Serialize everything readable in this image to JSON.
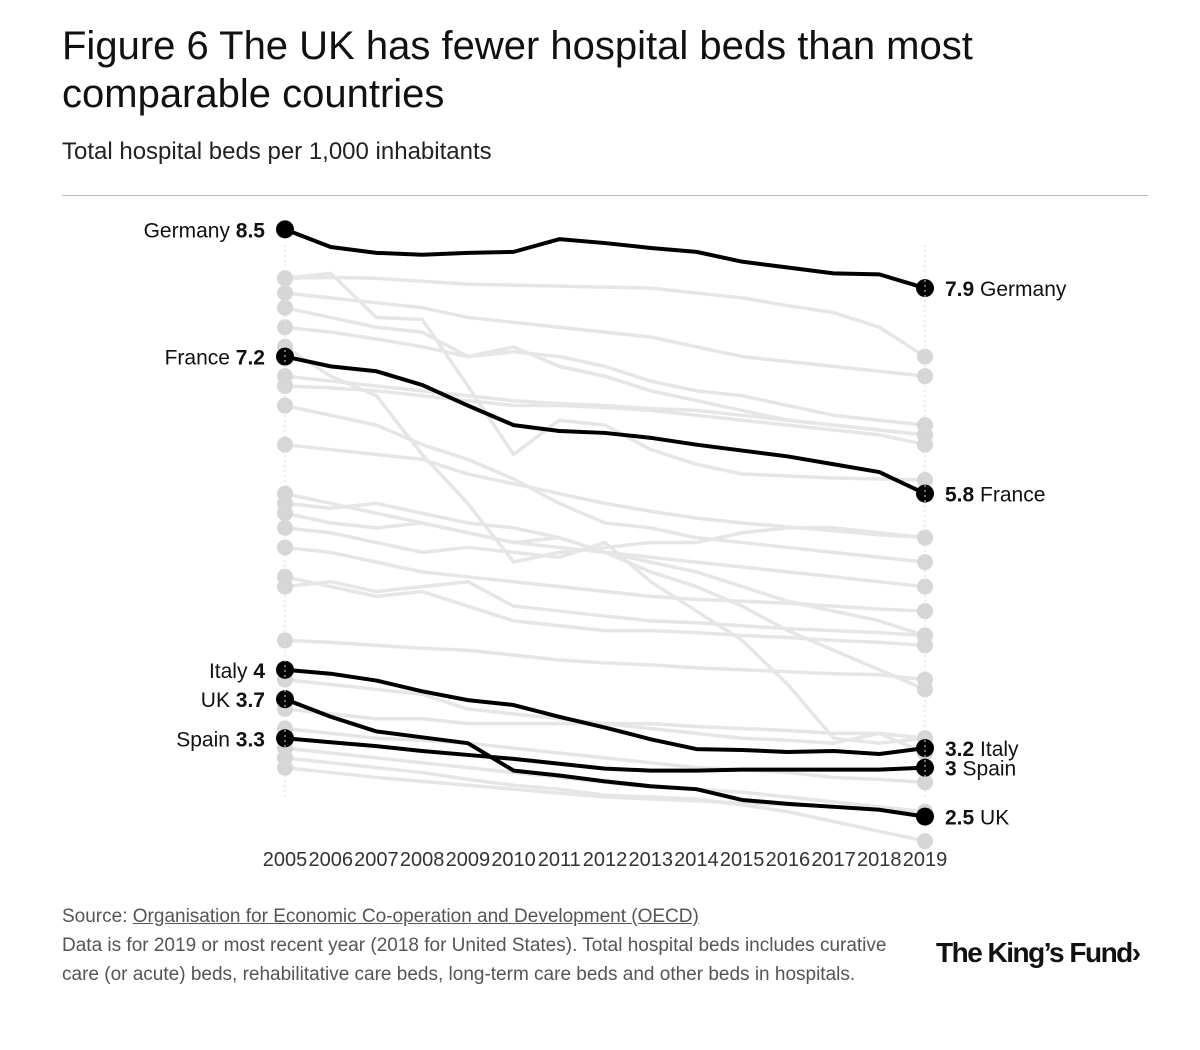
{
  "header": {
    "title": "Figure 6 The UK has fewer hospital beds than most comparable countries",
    "subtitle": "Total hospital beds per 1,000 inhabitants"
  },
  "chart_data": {
    "type": "line",
    "title": "Figure 6 The UK has fewer hospital beds than most comparable countries",
    "subtitle": "Total hospital beds per 1,000 inhabitants",
    "xlabel": "",
    "ylabel": "Total hospital beds per 1,000 inhabitants",
    "x": [
      2005,
      2006,
      2007,
      2008,
      2009,
      2010,
      2011,
      2012,
      2013,
      2014,
      2015,
      2016,
      2017,
      2018,
      2019
    ],
    "ylim": [
      1.75,
      8.8
    ],
    "grid": false,
    "highlighted_series": [
      {
        "name": "Germany",
        "start_label": "8.5",
        "end_label": "7.9",
        "values": [
          8.5,
          8.32,
          8.26,
          8.24,
          8.26,
          8.27,
          8.4,
          8.36,
          8.31,
          8.27,
          8.17,
          8.11,
          8.05,
          8.04,
          7.9
        ]
      },
      {
        "name": "France",
        "start_label": "7.2",
        "end_label": "5.8",
        "values": [
          7.2,
          7.1,
          7.05,
          6.91,
          6.7,
          6.5,
          6.44,
          6.42,
          6.37,
          6.3,
          6.24,
          6.18,
          6.1,
          6.02,
          5.8
        ]
      },
      {
        "name": "Italy",
        "start_label": "4",
        "end_label": "3.2",
        "values": [
          4.0,
          3.96,
          3.89,
          3.78,
          3.69,
          3.64,
          3.52,
          3.41,
          3.29,
          3.19,
          3.18,
          3.16,
          3.17,
          3.14,
          3.2
        ]
      },
      {
        "name": "UK",
        "start_label": "3.7",
        "end_label": "2.5",
        "values": [
          3.7,
          3.52,
          3.37,
          3.31,
          3.25,
          2.97,
          2.92,
          2.86,
          2.81,
          2.78,
          2.67,
          2.63,
          2.6,
          2.57,
          2.5
        ]
      },
      {
        "name": "Spain",
        "start_label": "3.3",
        "end_label": "3",
        "values": [
          3.3,
          3.26,
          3.22,
          3.17,
          3.13,
          3.09,
          3.04,
          2.99,
          2.97,
          2.97,
          2.98,
          2.98,
          2.98,
          2.98,
          3.0
        ]
      }
    ],
    "background_series": [
      {
        "values": [
          8.0,
          8.05,
          7.6,
          7.58,
          6.9,
          6.2,
          6.55,
          6.5,
          6.25,
          6.1,
          6.0,
          5.98,
          5.96,
          5.95,
          5.94
        ]
      },
      {
        "values": [
          8.0,
          8.01,
          8.0,
          7.97,
          7.94,
          7.93,
          7.92,
          7.91,
          7.9,
          7.85,
          7.8,
          7.72,
          7.65,
          7.5,
          7.2
        ]
      },
      {
        "values": [
          7.85,
          7.8,
          7.75,
          7.7,
          7.6,
          7.55,
          7.5,
          7.45,
          7.4,
          7.3,
          7.2,
          7.15,
          7.1,
          7.05,
          7.0
        ]
      },
      {
        "values": [
          7.7,
          7.6,
          7.5,
          7.45,
          7.2,
          7.25,
          7.2,
          7.1,
          6.95,
          6.85,
          6.8,
          6.7,
          6.6,
          6.55,
          6.5
        ]
      },
      {
        "values": [
          7.5,
          7.45,
          7.38,
          7.3,
          7.2,
          7.3,
          7.1,
          7.0,
          6.85,
          6.75,
          6.65,
          6.55,
          6.5,
          6.45,
          6.4
        ]
      },
      {
        "values": [
          7.3,
          7.0,
          6.8,
          6.2,
          5.7,
          5.1,
          5.2,
          5.25,
          5.3,
          5.3,
          5.4,
          5.45,
          5.45,
          5.4,
          5.35
        ]
      },
      {
        "values": [
          7.0,
          6.95,
          6.9,
          6.85,
          6.8,
          6.75,
          6.72,
          6.7,
          6.67,
          6.65,
          6.6,
          6.55,
          6.5,
          6.45,
          6.4
        ]
      },
      {
        "values": [
          6.9,
          6.88,
          6.85,
          6.8,
          6.75,
          6.7,
          6.7,
          6.68,
          6.65,
          6.6,
          6.55,
          6.5,
          6.45,
          6.4,
          6.3
        ]
      },
      {
        "values": [
          6.7,
          6.6,
          6.5,
          6.3,
          6.15,
          5.95,
          5.7,
          5.5,
          5.45,
          5.35,
          5.3,
          5.25,
          5.2,
          5.15,
          5.1
        ]
      },
      {
        "values": [
          6.3,
          6.25,
          6.2,
          6.15,
          6.0,
          5.9,
          5.8,
          5.7,
          5.62,
          5.55,
          5.5,
          5.46,
          5.42,
          5.38,
          5.35
        ]
      },
      {
        "values": [
          5.8,
          5.7,
          5.6,
          5.5,
          5.4,
          5.3,
          5.25,
          5.2,
          5.15,
          5.1,
          5.05,
          5.0,
          4.95,
          4.9,
          4.85
        ]
      },
      {
        "values": [
          5.7,
          5.65,
          5.7,
          5.6,
          5.5,
          5.45,
          5.35,
          5.2,
          5.0,
          4.85,
          4.65,
          4.4,
          4.2,
          4.0,
          3.8
        ]
      },
      {
        "values": [
          5.6,
          5.5,
          5.45,
          5.5,
          5.4,
          5.3,
          5.35,
          5.2,
          5.1,
          5.0,
          4.85,
          4.7,
          4.6,
          4.5,
          4.35
        ]
      },
      {
        "values": [
          5.45,
          5.4,
          5.3,
          5.2,
          5.25,
          5.2,
          5.15,
          5.3,
          4.9,
          4.6,
          4.3,
          3.85,
          3.3,
          3.25,
          3.3
        ]
      },
      {
        "values": [
          5.25,
          5.2,
          5.1,
          5.0,
          4.95,
          4.9,
          4.85,
          4.8,
          4.75,
          4.72,
          4.7,
          4.68,
          4.65,
          4.62,
          4.6
        ]
      },
      {
        "values": [
          4.85,
          4.9,
          4.8,
          4.85,
          4.9,
          4.65,
          4.6,
          4.55,
          4.5,
          4.48,
          4.45,
          4.42,
          4.4,
          4.38,
          4.35
        ]
      },
      {
        "values": [
          4.95,
          4.85,
          4.75,
          4.8,
          4.65,
          4.5,
          4.45,
          4.4,
          4.4,
          4.38,
          4.35,
          4.33,
          4.3,
          4.28,
          4.25
        ]
      },
      {
        "values": [
          4.3,
          4.28,
          4.25,
          4.22,
          4.2,
          4.15,
          4.1,
          4.07,
          4.05,
          4.02,
          4.0,
          3.98,
          3.96,
          3.95,
          3.9
        ]
      },
      {
        "values": [
          3.9,
          3.85,
          3.8,
          3.75,
          3.6,
          3.55,
          3.5,
          3.45,
          3.4,
          3.35,
          3.3,
          3.28,
          3.25,
          3.35,
          3.15
        ]
      },
      {
        "values": [
          3.6,
          3.55,
          3.5,
          3.5,
          3.45,
          3.45,
          3.45,
          3.45,
          3.45,
          3.42,
          3.4,
          3.38,
          3.35,
          3.35,
          3.3
        ]
      },
      {
        "values": [
          3.4,
          3.35,
          3.3,
          3.28,
          3.25,
          3.2,
          3.15,
          3.1,
          3.05,
          3.0,
          2.98,
          2.95,
          2.9,
          2.88,
          2.85
        ]
      },
      {
        "values": [
          3.2,
          3.15,
          3.1,
          3.05,
          3.0,
          2.95,
          2.9,
          2.85,
          2.8,
          2.78,
          2.75,
          2.7,
          2.65,
          2.6,
          2.55
        ]
      },
      {
        "values": [
          3.1,
          3.05,
          3.0,
          2.95,
          2.88,
          2.82,
          2.78,
          2.72,
          2.7,
          2.68,
          2.62,
          2.55,
          2.45,
          2.35,
          2.25
        ]
      },
      {
        "values": [
          3.0,
          2.95,
          2.9,
          2.86,
          2.82,
          2.78,
          2.74,
          2.7,
          2.68,
          2.66,
          2.64,
          2.62,
          2.6,
          2.58,
          2.55
        ]
      }
    ]
  },
  "footer": {
    "source_prefix": "Source: ",
    "source_link": "Organisation for Economic Co-operation and Development (OECD)",
    "note": "Data is for 2019 or most recent year (2018 for United States). Total hospital beds includes curative care (or acute) beds, rehabilitative care beds, long-term care beds and other beds in hospitals."
  },
  "branding": {
    "logo_text": "The King’s Fund›"
  },
  "colors": {
    "highlight": "#000000",
    "background_line": "#e6e6e6",
    "background_dot": "#d6d6d6",
    "rule": "#aebfc7"
  }
}
